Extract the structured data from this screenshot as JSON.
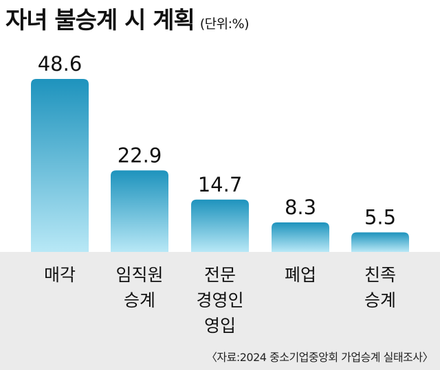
{
  "header": {
    "title": "자녀 불승계 시 계획",
    "unit": "(단위:%)"
  },
  "footer": {
    "source": "〈자료:2024 중소기업중앙회 가업승계 실태조사〉"
  },
  "colors": {
    "bar_top": "#1e93bd",
    "bar_bottom": "#b8e8f6",
    "band": "#ebebeb"
  },
  "chart_data": {
    "type": "bar",
    "categories": [
      [
        "매각"
      ],
      [
        "임직원",
        "승계"
      ],
      [
        "전문",
        "경영인",
        "영입"
      ],
      [
        "폐업"
      ],
      [
        "친족",
        "승계"
      ]
    ],
    "values": [
      48.6,
      22.9,
      14.7,
      8.3,
      5.5
    ],
    "value_labels": [
      "48.6",
      "22.9",
      "14.7",
      "8.3",
      "5.5"
    ],
    "ylim": [
      0,
      48.6
    ],
    "grid": false,
    "legend": "none"
  }
}
